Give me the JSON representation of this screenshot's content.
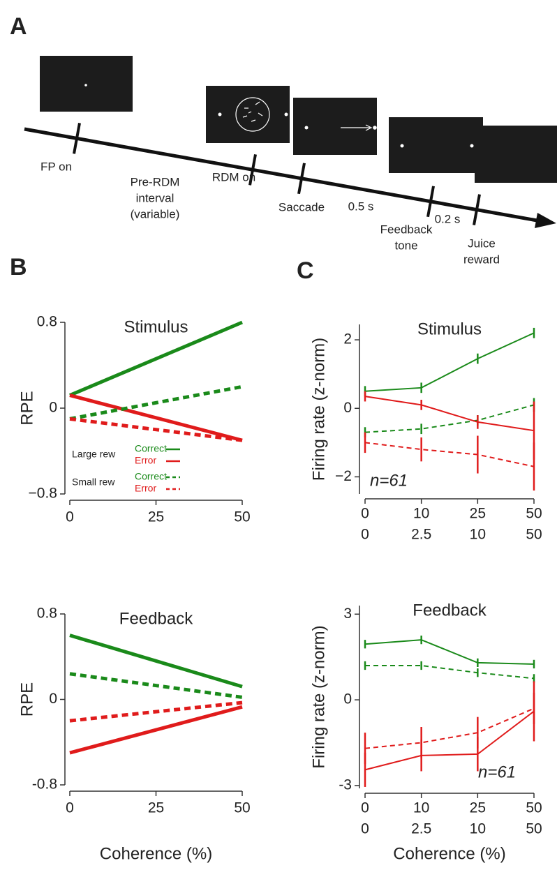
{
  "panel_labels": [
    "A",
    "B",
    "C"
  ],
  "timeline": {
    "labels": [
      [
        "FP on"
      ],
      [
        "Pre-RDM",
        "interval",
        "(variable)"
      ],
      [
        "RDM on"
      ],
      [
        "Saccade"
      ],
      [
        "0.5 s"
      ],
      [
        "Feedback",
        "tone"
      ],
      [
        "0.2 s"
      ],
      [
        "Juice",
        "reward"
      ]
    ]
  },
  "chart_data": [
    {
      "type": "line",
      "title": "Stimulus",
      "ylabel": "RPE",
      "x": [
        0,
        50
      ],
      "xlim": [
        0,
        50
      ],
      "xticks": [
        0,
        25,
        50
      ],
      "ylim": [
        -0.8,
        0.8
      ],
      "yticks": [
        0.8,
        0,
        {
          "value": -0.8,
          "label": "−0.8"
        }
      ],
      "series": [
        {
          "name": "Correct",
          "group": "Large rew",
          "color": "#1a8a1a",
          "linestyle": "solid",
          "values": [
            0.12,
            0.8
          ]
        },
        {
          "name": "Error",
          "group": "Large rew",
          "color": "#e01b1b",
          "linestyle": "solid",
          "values": [
            0.12,
            -0.3
          ]
        },
        {
          "name": "Correct",
          "group": "Small rew",
          "color": "#1a8a1a",
          "linestyle": "dashed",
          "values": [
            -0.1,
            0.2
          ]
        },
        {
          "name": "Error",
          "group": "Small rew",
          "color": "#e01b1b",
          "linestyle": "dashed",
          "values": [
            -0.1,
            -0.3
          ]
        }
      ]
    },
    {
      "type": "errorline",
      "title": "Stimulus",
      "ylabel": "Firing rate (z-norm)",
      "categories": [
        "0",
        "10",
        "25",
        "50"
      ],
      "categories2": [
        "0",
        "2.5",
        "10",
        "50"
      ],
      "ylim": [
        -2.5,
        2.45
      ],
      "yticks": [
        2,
        0,
        {
          "value": -2,
          "label": "−2"
        }
      ],
      "annotation": "n=61",
      "series": [
        {
          "color": "#1a8a1a",
          "linestyle": "solid",
          "values": [
            0.5,
            0.6,
            1.45,
            2.2
          ],
          "errors": [
            0.15,
            0.15,
            0.15,
            0.15
          ]
        },
        {
          "color": "#1a8a1a",
          "linestyle": "dashed",
          "values": [
            -0.7,
            -0.6,
            -0.35,
            0.1
          ],
          "errors": [
            0.15,
            0.15,
            0.15,
            0.2
          ]
        },
        {
          "color": "#e01b1b",
          "linestyle": "solid",
          "values": [
            0.35,
            0.1,
            -0.4,
            -0.65
          ],
          "errors": [
            0.15,
            0.15,
            0.2,
            0.85
          ]
        },
        {
          "color": "#e01b1b",
          "linestyle": "dashed",
          "values": [
            -1.0,
            -1.2,
            -1.35,
            -1.7
          ],
          "errors": [
            0.3,
            0.35,
            0.55,
            0.7
          ]
        }
      ]
    },
    {
      "type": "line",
      "title": "Feedback",
      "ylabel": "RPE",
      "xlabel": "Coherence (%)",
      "x": [
        0,
        50
      ],
      "xlim": [
        0,
        50
      ],
      "xticks": [
        0,
        25,
        50
      ],
      "ylim": [
        -0.8,
        0.8
      ],
      "yticks": [
        0.8,
        0,
        {
          "value": -0.8,
          "label": "-0.8"
        }
      ],
      "series": [
        {
          "color": "#1a8a1a",
          "linestyle": "solid",
          "values": [
            0.6,
            0.12
          ]
        },
        {
          "color": "#1a8a1a",
          "linestyle": "dashed",
          "values": [
            0.24,
            0.02
          ]
        },
        {
          "color": "#e01b1b",
          "linestyle": "dashed",
          "values": [
            -0.2,
            -0.03
          ]
        },
        {
          "color": "#e01b1b",
          "linestyle": "solid",
          "values": [
            -0.5,
            -0.07
          ]
        }
      ]
    },
    {
      "type": "errorline",
      "title": "Feedback",
      "ylabel": "Firing rate (z-norm)",
      "xlabel": "Coherence (%)",
      "categories": [
        "0",
        "10",
        "25",
        "50"
      ],
      "categories2": [
        "0",
        "2.5",
        "10",
        "50"
      ],
      "ylim": [
        -3.1,
        3.3
      ],
      "yticks": [
        3,
        0,
        {
          "value": -3,
          "label": "-3"
        }
      ],
      "annotation": "n=61",
      "series": [
        {
          "color": "#1a8a1a",
          "linestyle": "solid",
          "values": [
            1.95,
            2.1,
            1.3,
            1.25
          ],
          "errors": [
            0.15,
            0.15,
            0.15,
            0.15
          ]
        },
        {
          "color": "#1a8a1a",
          "linestyle": "dashed",
          "values": [
            1.2,
            1.2,
            0.95,
            0.75
          ],
          "errors": [
            0.15,
            0.15,
            0.15,
            0.15
          ]
        },
        {
          "color": "#e01b1b",
          "linestyle": "dashed",
          "values": [
            -1.7,
            -1.5,
            -1.15,
            -0.3
          ],
          "errors": [
            0.55,
            0.55,
            0.55,
            0.55
          ]
        },
        {
          "color": "#e01b1b",
          "linestyle": "solid",
          "values": [
            -2.45,
            -1.95,
            -1.9,
            -0.4
          ],
          "errors": [
            0.6,
            0.55,
            0.6,
            1.05
          ]
        }
      ]
    }
  ]
}
